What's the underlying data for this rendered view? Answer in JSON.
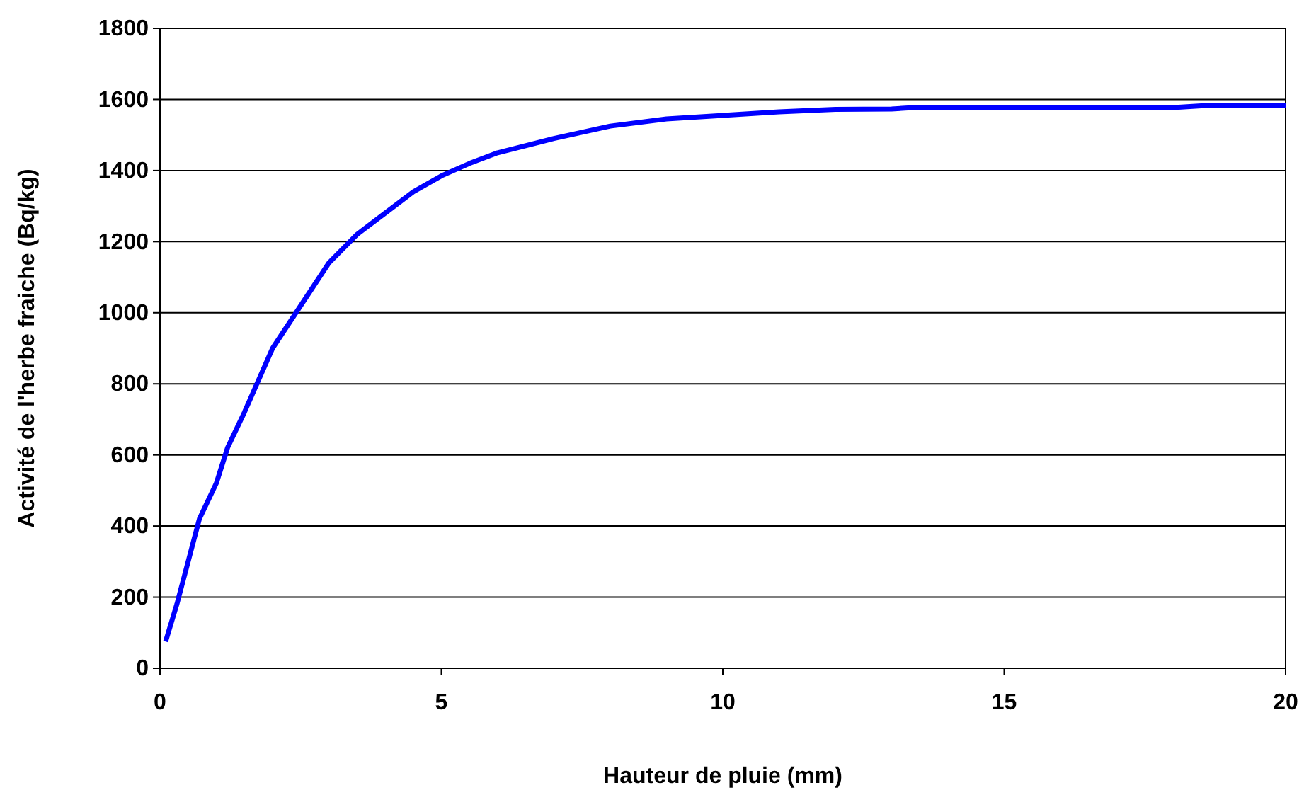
{
  "chart_data": {
    "type": "line",
    "xlabel": "Hauteur de pluie (mm)",
    "ylabel": "Activité de l'herbe fraiche (Bq/kg)",
    "xlim": [
      0,
      20
    ],
    "xticks": [
      0,
      5,
      10,
      15,
      20
    ],
    "ylim": [
      0,
      1800
    ],
    "yticks": [
      0,
      200,
      400,
      600,
      800,
      1000,
      1200,
      1400,
      1600,
      1800
    ],
    "grid": "y",
    "marker": "none",
    "line_style": "solid",
    "series": [
      {
        "color": "#0000ff",
        "x": [
          0.1,
          0.3,
          0.5,
          0.7,
          1.0,
          1.2,
          1.5,
          2.0,
          2.5,
          3.0,
          3.5,
          4.0,
          4.5,
          5.0,
          5.5,
          6,
          7,
          8,
          9,
          10,
          11,
          12,
          13,
          13.5,
          15,
          16,
          17,
          18,
          18.5,
          20
        ],
        "values": [
          75,
          180,
          300,
          420,
          520,
          620,
          720,
          900,
          1020,
          1140,
          1220,
          1280,
          1340,
          1385,
          1420,
          1450,
          1490,
          1525,
          1545,
          1555,
          1565,
          1572,
          1573,
          1578,
          1578,
          1577,
          1578,
          1577,
          1582,
          1582
        ]
      }
    ]
  }
}
